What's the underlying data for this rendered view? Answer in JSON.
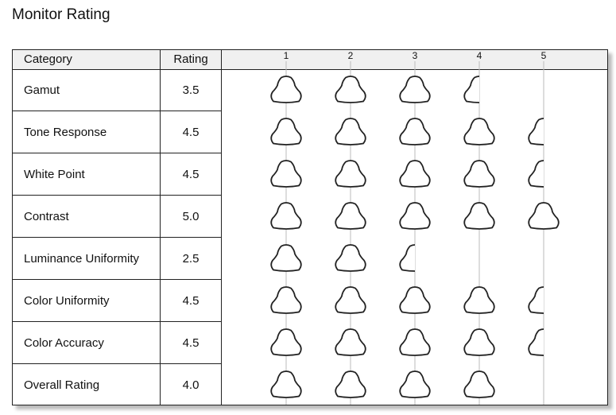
{
  "title": "Monitor Rating",
  "header": {
    "category": "Category",
    "rating": "Rating",
    "scale": [
      "1",
      "2",
      "3",
      "4",
      "5"
    ]
  },
  "rows": [
    {
      "category": "Gamut",
      "rating": "3.5",
      "value": 3.5
    },
    {
      "category": "Tone Response",
      "rating": "4.5",
      "value": 4.5
    },
    {
      "category": "White Point",
      "rating": "4.5",
      "value": 4.5
    },
    {
      "category": "Contrast",
      "rating": "5.0",
      "value": 5.0
    },
    {
      "category": "Luminance Uniformity",
      "rating": "2.5",
      "value": 2.5
    },
    {
      "category": "Color Uniformity",
      "rating": "4.5",
      "value": 4.5
    },
    {
      "category": "Color Accuracy",
      "rating": "4.5",
      "value": 4.5
    },
    {
      "category": "Overall Rating",
      "rating": "4.0",
      "value": 4.0
    }
  ],
  "icon": "rating-blob-icon",
  "colors": {
    "header_bg": "#f0f0f0",
    "grid": "#bbbbbb",
    "icon_stroke": "#222222"
  }
}
